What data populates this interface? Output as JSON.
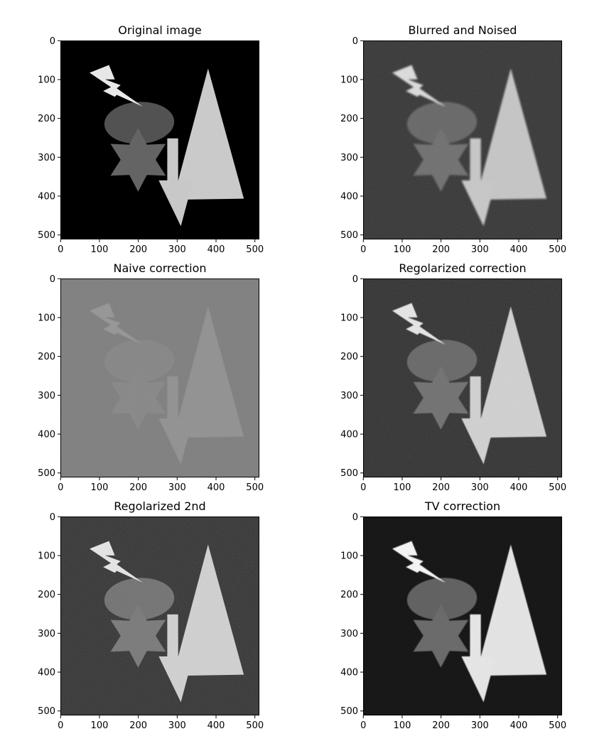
{
  "colors": {
    "background": "#ffffff",
    "axes_frame": "#000000",
    "colormap": "gray"
  },
  "chart_data": [
    {
      "type": "image",
      "title": "Original image",
      "image_content": "Grayscale test scene on black: lightning bolt, ellipse, six-pointed star, downward arrow, tall triangle",
      "background_gray": 0,
      "x_ticks": [
        0,
        100,
        200,
        300,
        400,
        500
      ],
      "y_ticks": [
        0,
        100,
        200,
        300,
        400,
        500
      ],
      "xlim": [
        0,
        511
      ],
      "ylim": [
        511,
        0
      ],
      "shape_grays": {
        "bolt": 232,
        "ellipse": 82,
        "star": 100,
        "arrow": 200,
        "triangle": 202
      },
      "noise": 0,
      "blur": 0
    },
    {
      "type": "image",
      "title": "Blurred and Noised",
      "image_content": "Same scene blurred with additive noise on dark gray background",
      "background_gray": 50,
      "x_ticks": [
        0,
        100,
        200,
        300,
        400,
        500
      ],
      "y_ticks": [
        0,
        100,
        200,
        300,
        400,
        500
      ],
      "xlim": [
        0,
        511
      ],
      "ylim": [
        511,
        0
      ],
      "shape_grays": {
        "bolt": 222,
        "ellipse": 100,
        "star": 108,
        "arrow": 200,
        "triangle": 198
      },
      "noise": 0.55,
      "blur": 1.2
    },
    {
      "type": "image",
      "title": "Naive correction",
      "image_content": "Low-contrast reconstruction, shapes barely visible on mid-gray",
      "background_gray": 128,
      "x_ticks": [
        0,
        100,
        200,
        300,
        400,
        500
      ],
      "y_ticks": [
        0,
        100,
        200,
        300,
        400,
        500
      ],
      "xlim": [
        0,
        511
      ],
      "ylim": [
        511,
        0
      ],
      "shape_grays": {
        "bolt": 150,
        "ellipse": 135,
        "star": 136,
        "arrow": 146,
        "triangle": 146
      },
      "noise": 0.18,
      "blur": 0.6
    },
    {
      "type": "image",
      "title": "Regolarized correction",
      "image_content": "Sharper reconstruction with visible noise on dark gray background",
      "background_gray": 45,
      "x_ticks": [
        0,
        100,
        200,
        300,
        400,
        500
      ],
      "y_ticks": [
        0,
        100,
        200,
        300,
        400,
        500
      ],
      "xlim": [
        0,
        511
      ],
      "ylim": [
        511,
        0
      ],
      "shape_grays": {
        "bolt": 232,
        "ellipse": 100,
        "star": 108,
        "arrow": 210,
        "triangle": 210
      },
      "noise": 0.6,
      "blur": 0.4
    },
    {
      "type": "image",
      "title": "Regolarized 2nd",
      "image_content": "Second regularized reconstruction, noisy dark background",
      "background_gray": 48,
      "x_ticks": [
        0,
        100,
        200,
        300,
        400,
        500
      ],
      "y_ticks": [
        0,
        100,
        200,
        300,
        400,
        500
      ],
      "xlim": [
        0,
        511
      ],
      "ylim": [
        511,
        0
      ],
      "shape_grays": {
        "bolt": 232,
        "ellipse": 110,
        "star": 116,
        "arrow": 210,
        "triangle": 210
      },
      "noise": 0.65,
      "blur": 0.3
    },
    {
      "type": "image",
      "title": "TV correction",
      "image_content": "Total-variation reconstruction, smooth near-black background, high contrast shapes",
      "background_gray": 18,
      "x_ticks": [
        0,
        100,
        200,
        300,
        400,
        500
      ],
      "y_ticks": [
        0,
        100,
        200,
        300,
        400,
        500
      ],
      "xlim": [
        0,
        511
      ],
      "ylim": [
        511,
        0
      ],
      "shape_grays": {
        "bolt": 245,
        "ellipse": 95,
        "star": 104,
        "arrow": 230,
        "triangle": 228
      },
      "noise": 0.2,
      "blur": 0.5
    }
  ]
}
